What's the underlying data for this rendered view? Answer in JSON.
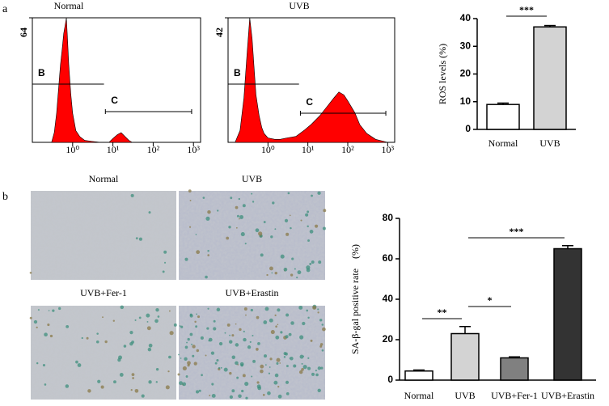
{
  "panel_labels": [
    "a",
    "b"
  ],
  "micrographs": {
    "labels": [
      "Normal",
      "UVB",
      "UVB+Fer-1",
      "UVB+Erastin"
    ]
  },
  "chart_data": [
    {
      "type": "area",
      "title": "Normal",
      "xscale": "log",
      "color": "#ff0000",
      "x": [
        0.3,
        0.35,
        0.4,
        0.45,
        0.5,
        0.55,
        0.6,
        0.65,
        0.7,
        0.75,
        0.8,
        0.9,
        1.0,
        1.2,
        1.5,
        2,
        3,
        5,
        8,
        10,
        13,
        16,
        20,
        25,
        30,
        50,
        100,
        1000
      ],
      "values": [
        0,
        5,
        15,
        28,
        40,
        48,
        56,
        60,
        64,
        52,
        40,
        25,
        15,
        6,
        3,
        1,
        0.5,
        0,
        0,
        2,
        4,
        5,
        3,
        1,
        0,
        0,
        0,
        0
      ],
      "xlim": [
        0.1,
        1500
      ],
      "ylim": [
        0,
        64
      ],
      "xticks": [
        {
          "value": 1,
          "label": "10⁰"
        },
        {
          "value": 10,
          "label": "10¹"
        },
        {
          "value": 100,
          "label": "10²"
        },
        {
          "value": 1000,
          "label": "10³"
        }
      ],
      "yticks": [
        64
      ],
      "gates": [
        {
          "name": "B",
          "range": [
            0.1,
            6
          ]
        },
        {
          "name": "C",
          "range": [
            6.5,
            900
          ]
        }
      ]
    },
    {
      "type": "area",
      "title": "UVB",
      "xscale": "log",
      "color": "#ff0000",
      "x": [
        0.15,
        0.2,
        0.25,
        0.3,
        0.35,
        0.4,
        0.45,
        0.5,
        0.6,
        0.7,
        0.8,
        1,
        1.5,
        2,
        3,
        5,
        8,
        12,
        20,
        30,
        45,
        60,
        80,
        100,
        150,
        200,
        300,
        500,
        1000
      ],
      "values": [
        0,
        4,
        15,
        30,
        42,
        35,
        25,
        16,
        9,
        5,
        3,
        1.5,
        1,
        1,
        1.5,
        2,
        4,
        6,
        9,
        12,
        15,
        17,
        16,
        14,
        10,
        6,
        3,
        1,
        0
      ],
      "xlim": [
        0.1,
        1500
      ],
      "ylim": [
        0,
        42
      ],
      "xticks": [
        {
          "value": 1,
          "label": "10⁰"
        },
        {
          "value": 10,
          "label": "10¹"
        },
        {
          "value": 100,
          "label": "10²"
        },
        {
          "value": 1000,
          "label": "10³"
        }
      ],
      "yticks": [
        42
      ],
      "gates": [
        {
          "name": "B",
          "range": [
            0.1,
            6
          ]
        },
        {
          "name": "C",
          "range": [
            6.5,
            900
          ]
        }
      ]
    },
    {
      "type": "bar",
      "ylabel": "ROS levels (%)",
      "categories": [
        "Normal",
        "UVB"
      ],
      "values": [
        9,
        37
      ],
      "errors": [
        0.5,
        0.5
      ],
      "colors": [
        "#ffffff",
        "#d3d3d3"
      ],
      "ylim": [
        0,
        40
      ],
      "yticks": [
        0,
        10,
        20,
        30,
        40
      ],
      "significance": [
        "***"
      ]
    },
    {
      "type": "bar",
      "ylabel": "SA-β-gal positive rate    (%)",
      "categories": [
        "Normal",
        "UVB",
        "UVB+Fer-1",
        "UVB+Erastin"
      ],
      "values": [
        4.5,
        23,
        11,
        65
      ],
      "errors": [
        0.5,
        3.5,
        0.5,
        1.5
      ],
      "colors": [
        "#ffffff",
        "#d3d3d3",
        "#808080",
        "#333333"
      ],
      "ylim": [
        0,
        80
      ],
      "yticks": [
        0,
        20,
        40,
        60,
        80
      ],
      "significance": [
        "**",
        "*",
        "***"
      ]
    }
  ]
}
